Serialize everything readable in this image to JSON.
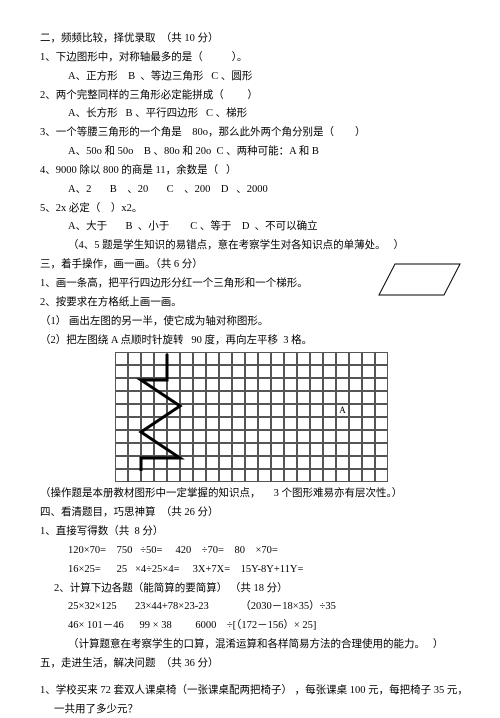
{
  "lines": {
    "l1": "二，频频比较，择优录取  （共 10 分）",
    "l2": "1、下边图形中，对称轴最多的是（           ）。",
    "l2a": "A、正方形    B  、等边三角形   C 、圆形",
    "l3": "2、两个完整同样的三角形必定能拼成（         ）",
    "l3a": "A、长方形   B 、平行四边形   C 、梯形",
    "l4": "3、一个等腰三角形的一个角是    80o，那么此外两个角分别是（        ）",
    "l4a": "A、50o 和 50o    B 、80o 和 20o  C 、两种可能：A 和 B",
    "l5": "4、9000 除以 800 的商是 11，余数是（   ）",
    "l5a": "A、2       B    、20       C    、200    D   、2000",
    "l6": "5、2x 必定（    ）x2。",
    "l6a": "A、大于       B  、小于        C 、等于    D  、不可以确立",
    "l6b": "（4、5 题是学生知识的易错点，意在考察学生对各知识点的单薄处。   ）",
    "l7": "三，着手操作，画一画。（共 6 分）",
    "l8": "1、画一条高，把平行四边形分红一个三角形和一个梯形。",
    "l9": "2、按要求在方格纸上画一画。",
    "l10": "（1） 画出左图的另一半，使它成为轴对称图形。",
    "l11": "（2）把左图绕 A 点顺时针旋转   90 度，再向左平移  3 格。",
    "gridA": "A",
    "l12": "（操作题是本册教材图形中一定掌握的知识点，     3 个图形难易亦有层次性。）",
    "l13": "四、看清题目，巧思神算  （共 26 分）",
    "l14": "1、直接写得数（共  8 分）",
    "l14a": "120×70=    750   ÷50=     420    ÷70=    80    ×70=",
    "l14b": "16×25=      25   ×4÷25×4=     3X+7X=    15Y-8Y+11Y=",
    "l15": "2、计算下边各题（能简算的要简算） （共 18 分）",
    "l15a": "25×32×125       23×44+78×23-23            （2030－18×35）÷35",
    "l15b": "46× 101－46      99 × 38         6000    ÷[（172－156）× 25]",
    "l15c": "（计算题意在考察学生的口算，混淆运算和各样简易方法的合理使用的能力。   ）",
    "l16": "五，走进生活，解决问题  （共 36 分）",
    "l17": "1、学校买来 72 套双人课桌椅（一张课桌配两把椅子） ，每张课桌 100 元，每把椅子 35 元，",
    "l17a": "一共用了多少元？"
  },
  "colors": {
    "text": "#000000",
    "bg": "#ffffff",
    "grid": "#555555",
    "shape": "#000000"
  }
}
